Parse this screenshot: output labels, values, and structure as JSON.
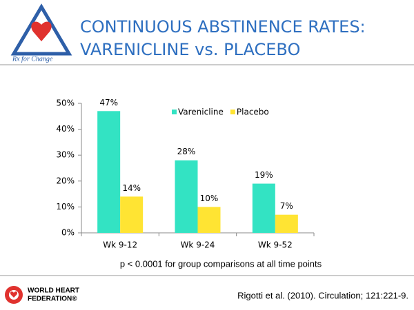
{
  "header": {
    "title": [
      "CONTINUOUS ABSTINENCE RATES:",
      "VARENICLINE vs. PLACEBO"
    ],
    "logo_text": "Rx for Change"
  },
  "chart_data": {
    "type": "bar",
    "categories": [
      "Wk 9-12",
      "Wk 9-24",
      "Wk 9-52"
    ],
    "series": [
      {
        "name": "Varenicline",
        "color": "#33e3c3",
        "values": [
          47,
          28,
          19
        ],
        "value_labels": [
          "47%",
          "28%",
          "19%"
        ]
      },
      {
        "name": "Placebo",
        "color": "#ffe433",
        "values": [
          14,
          10,
          7
        ],
        "value_labels": [
          "14%",
          "10%",
          "7%"
        ]
      }
    ],
    "ylim": [
      0,
      50
    ],
    "yticks": [
      {
        "value": 0,
        "label": "0%"
      },
      {
        "value": 10,
        "label": "10%"
      },
      {
        "value": 20,
        "label": "20%"
      },
      {
        "value": 30,
        "label": "30%"
      },
      {
        "value": 40,
        "label": "40%"
      },
      {
        "value": 50,
        "label": "50%"
      }
    ],
    "legend": "top",
    "note": "p < 0.0001 for group comparisons at all time points"
  },
  "footer": {
    "logo": [
      "WORLD HEART",
      "FEDERATION®"
    ],
    "citation": "Rigotti et al. (2010). Circulation; 121:221-9."
  }
}
